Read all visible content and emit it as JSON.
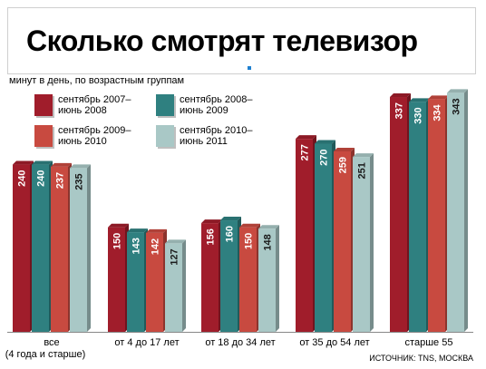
{
  "title": "Сколько смотрят телевизор",
  "source": "ИСТОЧНИК: TNS, МОСКВА",
  "chart_data": {
    "type": "bar",
    "subtitle": "минут в день, по возрастным группам",
    "categories": [
      "все\n(4 года и старше)",
      "от 4 до 17 лет",
      "от 18 до 34 лет",
      "от 35 до 54 лет",
      "старше 55"
    ],
    "series": [
      {
        "name": "сентябрь 2007–\nиюнь 2008",
        "color": "#a01d2b",
        "values": [
          240,
          150,
          156,
          277,
          337
        ]
      },
      {
        "name": "сентябрь 2008–\nиюнь 2009",
        "color": "#2f8080",
        "values": [
          240,
          143,
          160,
          270,
          330
        ]
      },
      {
        "name": "сентябрь 2009–\nиюнь 2010",
        "color": "#c84a40",
        "values": [
          237,
          142,
          150,
          259,
          334
        ]
      },
      {
        "name": "сентябрь 2010–\nиюнь 2011",
        "color": "#a9c8c6",
        "values": [
          235,
          127,
          148,
          251,
          343
        ]
      }
    ],
    "ylim": [
      0,
      400
    ],
    "grid": false,
    "legend_position": "top-left"
  }
}
